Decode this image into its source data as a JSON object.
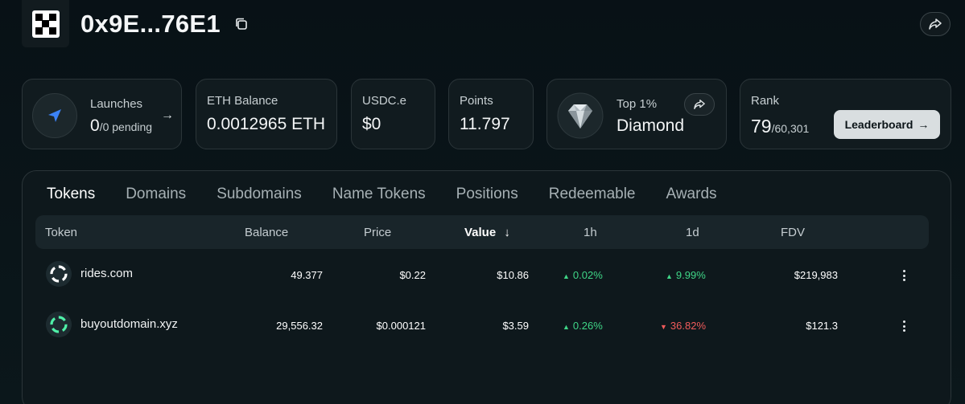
{
  "header": {
    "title": "0x9E...76E1"
  },
  "cards": {
    "launches": {
      "label": "Launches",
      "count": "0",
      "pending": "/0 pending"
    },
    "eth_balance": {
      "label": "ETH Balance",
      "value": "0.0012965 ETH"
    },
    "usdc": {
      "label": "USDC.e",
      "value": "$0"
    },
    "points": {
      "label": "Points",
      "value": "11.797"
    },
    "tier": {
      "label": "Top 1%",
      "value": "Diamond"
    },
    "rank": {
      "label": "Rank",
      "value": "79",
      "total": "/60,301",
      "button": "Leaderboard"
    }
  },
  "tabs": [
    "Tokens",
    "Domains",
    "Subdomains",
    "Name Tokens",
    "Positions",
    "Redeemable",
    "Awards"
  ],
  "table": {
    "headers": {
      "token": "Token",
      "balance": "Balance",
      "price": "Price",
      "value": "Value",
      "h1": "1h",
      "d1": "1d",
      "fdv": "FDV"
    },
    "sort_indicator": "↓",
    "rows": [
      {
        "token": "rides.com",
        "balance": "49.377",
        "price": "$0.22",
        "value": "$10.86",
        "h1": "0.02%",
        "h1_dir": "up",
        "d1": "9.99%",
        "d1_dir": "up",
        "fdv": "$219,983",
        "icon_color": "#ffffff"
      },
      {
        "token": "buyoutdomain.xyz",
        "balance": "29,556.32",
        "price": "$0.000121",
        "value": "$3.59",
        "h1": "0.26%",
        "h1_dir": "up",
        "d1": "36.82%",
        "d1_dir": "down",
        "fdv": "$121.3",
        "icon_color": "#4ff0a8"
      }
    ]
  },
  "colors": {
    "up": "#3fd687",
    "down": "#f15b5b",
    "accent": "#3b82f6"
  }
}
